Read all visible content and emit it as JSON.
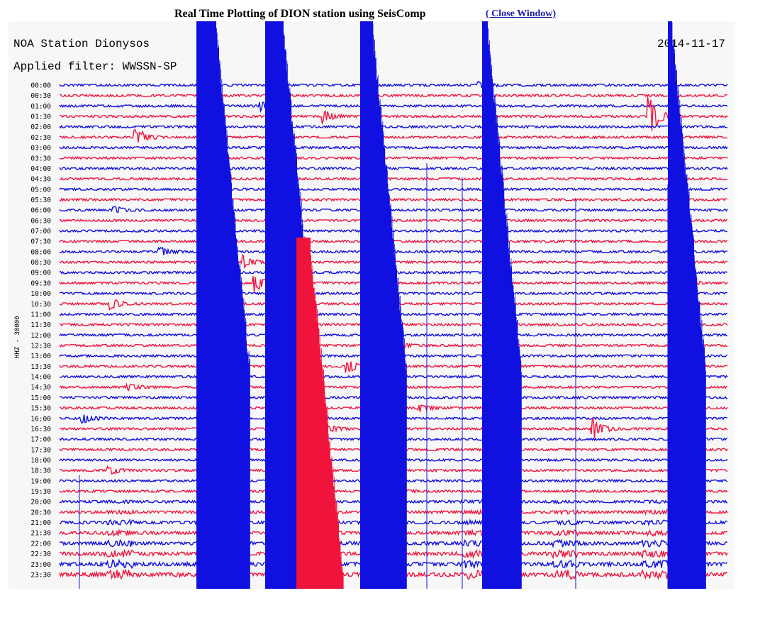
{
  "header": {
    "title": "Real Time Plotting of DION station using SeisComp",
    "close_link": "( Close Window)"
  },
  "plot": {
    "station_label": "NOA Station Dionysos",
    "filter_label": "Applied filter: WWSSN-SP",
    "date": "2014-11-17",
    "channel_label": "HHZ - 30000",
    "colors": {
      "blue": "#1010e0",
      "red": "#f0143c",
      "background": "#f7f7f7"
    },
    "time_labels": [
      "00:00",
      "00:30",
      "01:00",
      "01:30",
      "02:00",
      "02:30",
      "03:00",
      "03:30",
      "04:00",
      "04:30",
      "05:00",
      "05:30",
      "06:00",
      "06:30",
      "07:00",
      "07:30",
      "08:00",
      "08:30",
      "09:00",
      "09:30",
      "10:00",
      "10:30",
      "11:00",
      "11:30",
      "12:00",
      "12:30",
      "13:00",
      "13:30",
      "14:00",
      "14:30",
      "15:00",
      "15:30",
      "16:00",
      "16:30",
      "17:00",
      "17:30",
      "18:00",
      "18:30",
      "19:00",
      "19:30",
      "20:00",
      "20:30",
      "21:00",
      "21:30",
      "22:00",
      "22:30",
      "23:00",
      "23:30"
    ]
  }
}
